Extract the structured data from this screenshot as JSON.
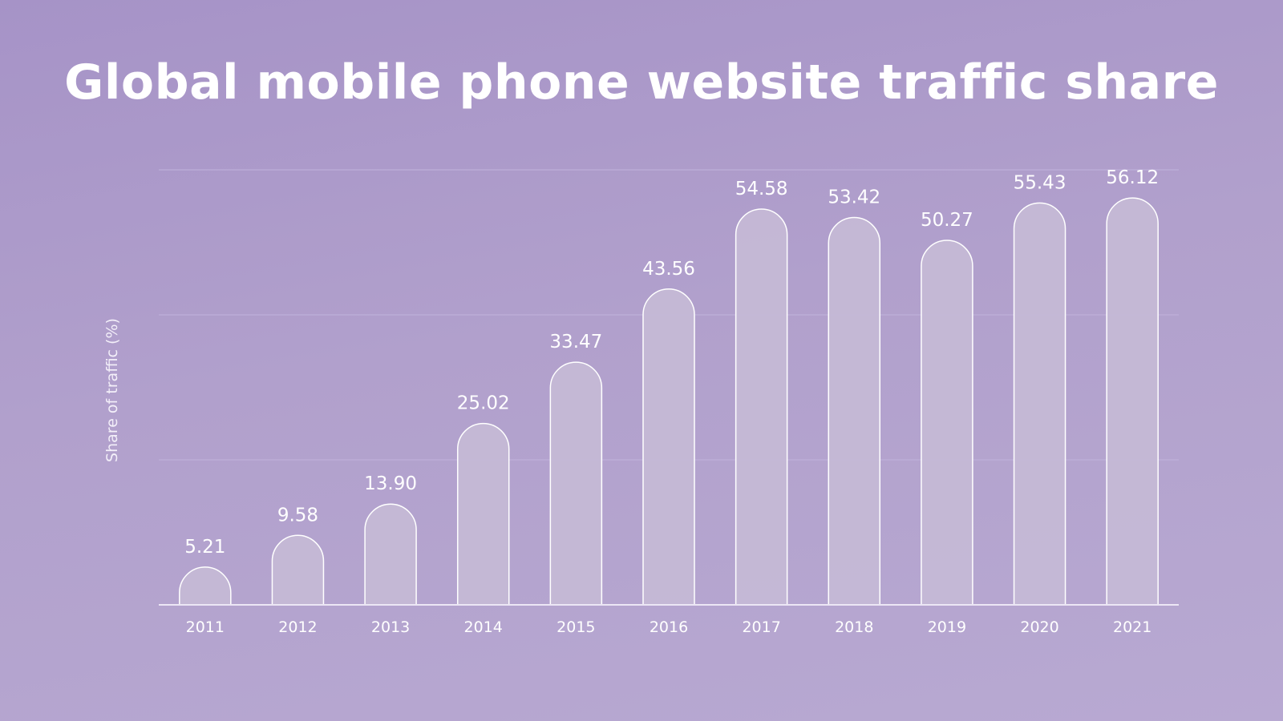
{
  "chart_data": {
    "type": "bar",
    "title": "Global mobile phone website traffic share",
    "xlabel": "",
    "ylabel": "Share of traffic (%)",
    "categories": [
      "2011",
      "2012",
      "2013",
      "2014",
      "2015",
      "2016",
      "2017",
      "2018",
      "2019",
      "2020",
      "2021"
    ],
    "values": [
      5.21,
      9.58,
      13.9,
      25.02,
      33.47,
      43.56,
      54.58,
      53.42,
      50.27,
      55.43,
      56.12
    ],
    "value_labels": [
      "5.21",
      "9.58",
      "13.90",
      "25.02",
      "33.47",
      "43.56",
      "54.58",
      "53.42",
      "50.27",
      "55.43",
      "56.12"
    ],
    "ylim": [
      0,
      60
    ],
    "grid": true,
    "colors": {
      "bar_fill": "#c5bad6",
      "bar_stroke": "#ffffff",
      "gridline": "#c1b3dc",
      "text": "#ffffff"
    }
  }
}
